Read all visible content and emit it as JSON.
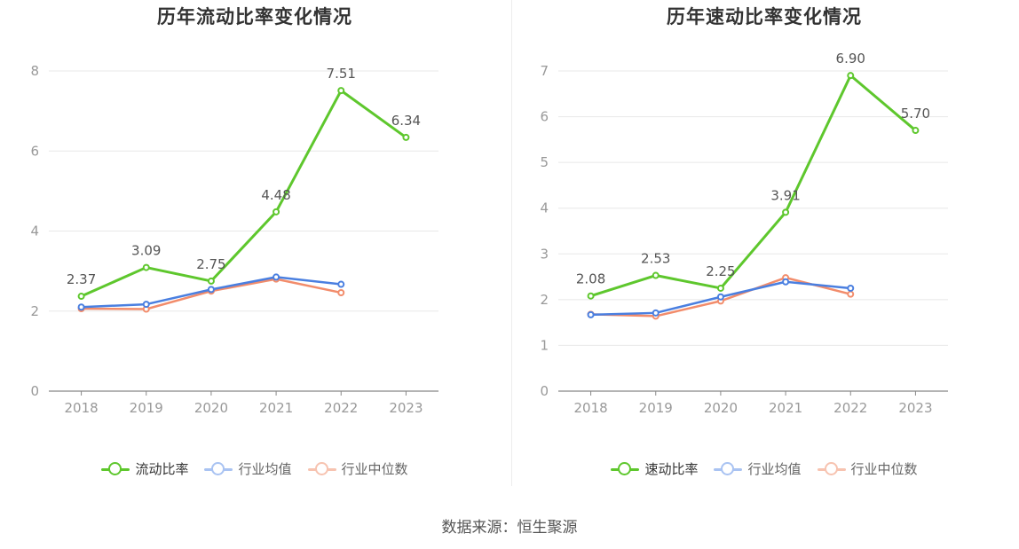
{
  "charts": [
    {
      "id": "current",
      "title": "历年流动比率变化情况",
      "legend": [
        "流动比率",
        "行业均值",
        "行业中位数"
      ]
    },
    {
      "id": "quick",
      "title": "历年速动比率变化情况",
      "legend": [
        "速动比率",
        "行业均值",
        "行业中位数"
      ]
    }
  ],
  "source": "数据来源：恒生聚源",
  "colors": {
    "main": "#5ec72d",
    "mean": "#4a7fe0",
    "median": "#f28c6b",
    "axis": "#999999",
    "grid": "#e8e8e8"
  },
  "chart_data": [
    {
      "type": "line",
      "title": "历年流动比率变化情况",
      "categories": [
        "2018",
        "2019",
        "2020",
        "2021",
        "2022",
        "2023"
      ],
      "ylim": [
        0,
        8
      ],
      "yticks": [
        0,
        2,
        4,
        6,
        8
      ],
      "grid": true,
      "legend_position": "bottom",
      "series": [
        {
          "name": "流动比率",
          "values": [
            2.37,
            3.09,
            2.75,
            4.48,
            7.51,
            6.34
          ],
          "labels": [
            "2.37",
            "3.09",
            "2.75",
            "4.48",
            "7.51",
            "6.34"
          ]
        },
        {
          "name": "行业均值",
          "values": [
            2.1,
            2.17,
            2.54,
            2.85,
            2.67,
            null
          ]
        },
        {
          "name": "行业中位数",
          "values": [
            2.06,
            2.05,
            2.5,
            2.8,
            2.46,
            null
          ]
        }
      ]
    },
    {
      "type": "line",
      "title": "历年速动比率变化情况",
      "categories": [
        "2018",
        "2019",
        "2020",
        "2021",
        "2022",
        "2023"
      ],
      "ylim": [
        0,
        7
      ],
      "yticks": [
        0,
        1,
        2,
        3,
        4,
        5,
        6,
        7
      ],
      "grid": true,
      "legend_position": "bottom",
      "series": [
        {
          "name": "速动比率",
          "values": [
            2.08,
            2.53,
            2.25,
            3.91,
            6.9,
            5.7
          ],
          "labels": [
            "2.08",
            "2.53",
            "2.25",
            "3.91",
            "6.90",
            "5.70"
          ]
        },
        {
          "name": "行业均值",
          "values": [
            1.67,
            1.71,
            2.06,
            2.39,
            2.25,
            null
          ]
        },
        {
          "name": "行业中位数",
          "values": [
            1.68,
            1.64,
            1.97,
            2.48,
            2.12,
            null
          ]
        }
      ]
    }
  ]
}
